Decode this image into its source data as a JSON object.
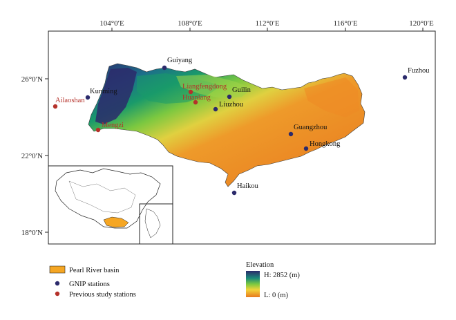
{
  "map": {
    "lon_ticks": [
      "104°0′E",
      "108°0′E",
      "112°0′E",
      "116°0′E",
      "120°0′E"
    ],
    "lat_ticks": [
      "26°0′N",
      "22°0′N",
      "18°0′N"
    ],
    "gnip_stations": [
      {
        "name": "Guiyang"
      },
      {
        "name": "Kunming"
      },
      {
        "name": "Guilin"
      },
      {
        "name": "Liuzhou"
      },
      {
        "name": "Guangzhou"
      },
      {
        "name": "Hongkong"
      },
      {
        "name": "Haikou"
      },
      {
        "name": "Fuzhou"
      }
    ],
    "previous_stations": [
      {
        "name": "Ailaoshan"
      },
      {
        "name": "Mengzi"
      },
      {
        "name": "Liangfengdong"
      },
      {
        "name": "Huanlang"
      }
    ],
    "colors": {
      "basin_fill": "#f5a623",
      "gnip_marker": "#2b2a6b",
      "previous_marker": "#b5312a",
      "elev_high": "#2b2a6b",
      "elev_mid_high": "#1a8a7a",
      "elev_mid": "#7cc840",
      "elev_mid_low": "#f2d43a",
      "elev_low": "#e8781e"
    }
  },
  "legend": {
    "basin_label": "Pearl River basin",
    "gnip_label": "GNIP stations",
    "previous_label": "Previous study stations"
  },
  "elevation": {
    "title": "Elevation",
    "high_label": "H: 2852 (m)",
    "low_label": "L: 0 (m)"
  }
}
